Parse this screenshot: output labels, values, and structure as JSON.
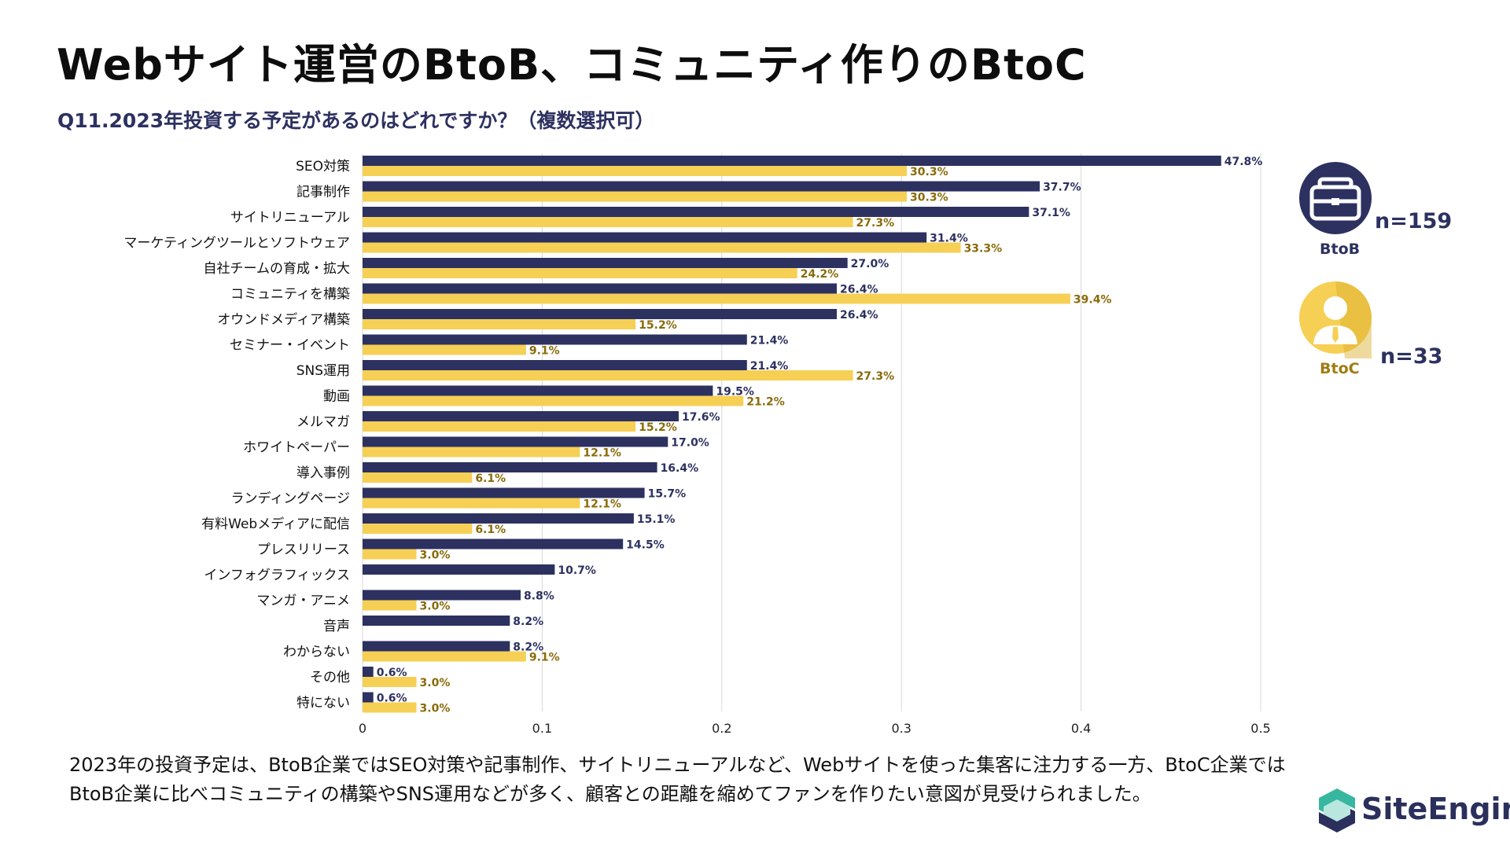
{
  "title": "Webサイト運営のBtoB、コミュニティ作りのBtoC",
  "subtitle": "Q11.2023年投資する予定があるのはどれですか？（複数選択可）",
  "legend": {
    "btob": {
      "label": "BtoB",
      "n": "n=159",
      "color": "#2c3160"
    },
    "btoc": {
      "label": "BtoC",
      "n": "n=33",
      "color": "#f6cf55"
    }
  },
  "caption": "2023年の投資予定は、BtoB企業ではSEO対策や記事制作、サイトリニューアルなど、Webサイトを使った集客に注力する一方、BtoC企業ではBtoB企業に比べコミュニティの構築やSNS運用などが多く、顧客との距離を縮めてファンを作りたい意図が見受けられました。",
  "brand": {
    "name": "SiteEngine"
  },
  "chart_data": {
    "type": "bar",
    "orientation": "horizontal",
    "categories": [
      "SEO対策",
      "記事制作",
      "サイトリニューアル",
      "マーケティングツールとソフトウェア",
      "自社チームの育成・拡大",
      "コミュニティを構築",
      "オウンドメディア構築",
      "セミナー・イベント",
      "SNS運用",
      "動画",
      "メルマガ",
      "ホワイトペーパー",
      "導入事例",
      "ランディングページ",
      "有料Webメディアに配信",
      "プレスリリース",
      "インフォグラフィックス",
      "マンガ・アニメ",
      "音声",
      "わからない",
      "その他",
      "特にない"
    ],
    "series": [
      {
        "name": "BtoB",
        "color": "#2c3160",
        "label_color": "#2c3160",
        "values": [
          0.478,
          0.377,
          0.371,
          0.314,
          0.27,
          0.264,
          0.264,
          0.214,
          0.214,
          0.195,
          0.176,
          0.17,
          0.164,
          0.157,
          0.151,
          0.145,
          0.107,
          0.088,
          0.082,
          0.082,
          0.006,
          0.006
        ],
        "labels": [
          "47.8%",
          "37.7%",
          "37.1%",
          "31.4%",
          "27.0%",
          "26.4%",
          "26.4%",
          "21.4%",
          "21.4%",
          "19.5%",
          "17.6%",
          "17.0%",
          "16.4%",
          "15.7%",
          "15.1%",
          "14.5%",
          "10.7%",
          "8.8%",
          "8.2%",
          "8.2%",
          "0.6%",
          "0.6%"
        ]
      },
      {
        "name": "BtoC",
        "color": "#f6cf55",
        "label_color": "#8a6a08",
        "values": [
          0.303,
          0.303,
          0.273,
          0.333,
          0.242,
          0.394,
          0.152,
          0.091,
          0.273,
          0.212,
          0.152,
          0.121,
          0.061,
          0.121,
          0.061,
          0.03,
          null,
          0.03,
          null,
          0.091,
          0.03,
          0.03
        ],
        "labels": [
          "30.3%",
          "30.3%",
          "27.3%",
          "33.3%",
          "24.2%",
          "39.4%",
          "15.2%",
          "9.1%",
          "27.3%",
          "21.2%",
          "15.2%",
          "12.1%",
          "6.1%",
          "12.1%",
          "6.1%",
          "3.0%",
          "",
          "3.0%",
          "",
          "9.1%",
          "3.0%",
          "3.0%"
        ]
      }
    ],
    "x_ticks": [
      "0",
      "0.1",
      "0.2",
      "0.3",
      "0.4",
      "0.5"
    ],
    "x_tick_values": [
      0,
      0.1,
      0.2,
      0.3,
      0.4,
      0.5
    ],
    "xlim": [
      0,
      0.5
    ],
    "grid": true
  }
}
